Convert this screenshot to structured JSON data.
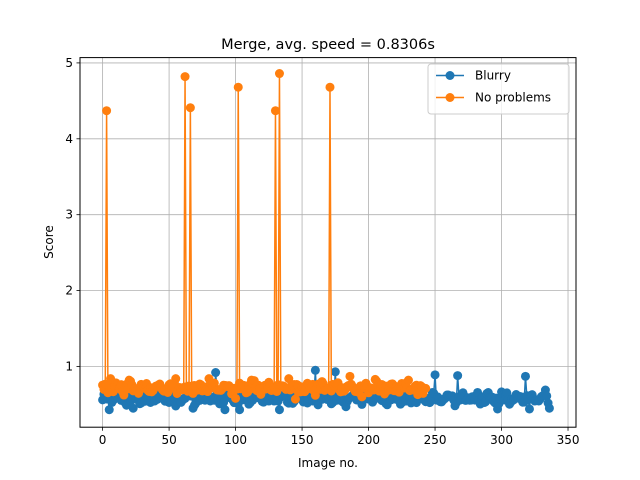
{
  "chart_data": {
    "type": "line",
    "title": "Merge, avg. speed = 0.8306s",
    "xlabel": "Image no.",
    "ylabel": "Score",
    "xlim": [
      -17,
      356
    ],
    "ylim": [
      0.2,
      5.07
    ],
    "xticks": [
      0,
      50,
      100,
      150,
      200,
      250,
      300,
      350
    ],
    "yticks": [
      1,
      2,
      3,
      4,
      5
    ],
    "grid": true,
    "legend": "top-right",
    "marker": "circle",
    "series": [
      {
        "name": "Blurry",
        "color": "#1f77b4",
        "baseline": [
          0.56,
          0.58,
          0.6,
          0.57,
          0.55,
          0.59,
          0.61,
          0.58,
          0.56,
          0.6,
          0.62,
          0.59,
          0.57,
          0.55
        ],
        "x_start": 0,
        "x_end": 336,
        "highlights": [
          {
            "x": 5,
            "y": 0.43
          },
          {
            "x": 13,
            "y": 0.67
          },
          {
            "x": 23,
            "y": 0.45
          },
          {
            "x": 40,
            "y": 0.65
          },
          {
            "x": 55,
            "y": 0.48
          },
          {
            "x": 68,
            "y": 0.45
          },
          {
            "x": 85,
            "y": 0.92
          },
          {
            "x": 92,
            "y": 0.43
          },
          {
            "x": 103,
            "y": 0.43
          },
          {
            "x": 133,
            "y": 0.43
          },
          {
            "x": 160,
            "y": 0.95
          },
          {
            "x": 175,
            "y": 0.93
          },
          {
            "x": 183,
            "y": 0.47
          },
          {
            "x": 250,
            "y": 0.89
          },
          {
            "x": 267,
            "y": 0.88
          },
          {
            "x": 297,
            "y": 0.44
          },
          {
            "x": 318,
            "y": 0.87
          },
          {
            "x": 321,
            "y": 0.44
          },
          {
            "x": 333,
            "y": 0.69
          },
          {
            "x": 336,
            "y": 0.45
          }
        ]
      },
      {
        "name": "No problems",
        "color": "#ff7f0e",
        "baseline": [
          0.72,
          0.7,
          0.74,
          0.71,
          0.69,
          0.73,
          0.75,
          0.72,
          0.7,
          0.74,
          0.72,
          0.7
        ],
        "x_start": 0,
        "x_end": 243,
        "highlights": [
          {
            "x": 3,
            "y": 4.37
          },
          {
            "x": 62,
            "y": 4.82
          },
          {
            "x": 66,
            "y": 4.41
          },
          {
            "x": 102,
            "y": 4.68
          },
          {
            "x": 130,
            "y": 4.37
          },
          {
            "x": 133,
            "y": 4.86
          },
          {
            "x": 171,
            "y": 4.68
          },
          {
            "x": 6,
            "y": 0.84
          },
          {
            "x": 20,
            "y": 0.82
          },
          {
            "x": 55,
            "y": 0.84
          },
          {
            "x": 80,
            "y": 0.84
          },
          {
            "x": 112,
            "y": 0.82
          },
          {
            "x": 140,
            "y": 0.84
          },
          {
            "x": 186,
            "y": 0.87
          },
          {
            "x": 205,
            "y": 0.83
          },
          {
            "x": 230,
            "y": 0.82
          },
          {
            "x": 100,
            "y": 0.58
          },
          {
            "x": 145,
            "y": 0.57
          },
          {
            "x": 195,
            "y": 0.6
          },
          {
            "x": 237,
            "y": 0.63
          }
        ]
      }
    ]
  }
}
